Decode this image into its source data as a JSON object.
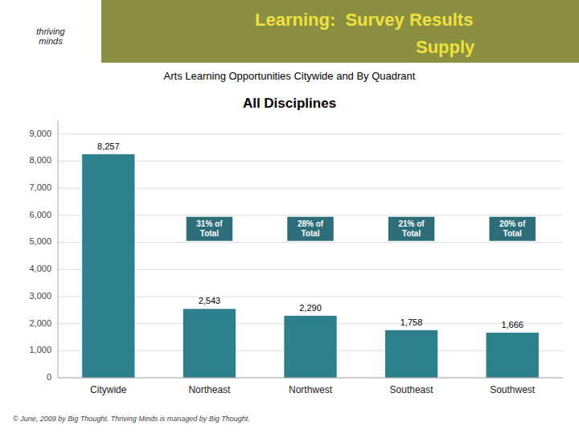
{
  "page": {
    "logo": "thriving\nminds",
    "header": [
      "Learning:  Survey Results",
      "Supply"
    ],
    "header_color": "#8a9040",
    "header_text_color": "#f0e040",
    "footer": "© June, 2009 by Big Thought. Thriving Minds is managed by Big Thought."
  },
  "chart_data": {
    "type": "bar",
    "title": "All Disciplines",
    "subtitle": "Arts Learning Opportunities Citywide and By Quadrant",
    "categories": [
      "Citywide",
      "Northeast",
      "Northwest",
      "Southeast",
      "Southwest"
    ],
    "values": [
      8257,
      2543,
      2290,
      1758,
      1666
    ],
    "value_labels": [
      "8,257",
      "2,543",
      "2,290",
      "1,758",
      "1,666"
    ],
    "data_labels": true,
    "color": "#2e7f8c",
    "ylim": [
      0,
      9500
    ],
    "yticks": [
      0,
      {
        "value": 1000,
        "label": "1,000"
      },
      {
        "value": 2000,
        "label": "2,000"
      },
      {
        "value": 3000,
        "label": "3,000"
      },
      {
        "value": 4000,
        "label": "4,000"
      },
      {
        "value": 5000,
        "label": "5,000"
      },
      {
        "value": 6000,
        "label": "6,000"
      },
      {
        "value": 7000,
        "label": "7,000"
      },
      {
        "value": 8000,
        "label": "8,000"
      },
      {
        "value": 9000,
        "label": "9,000"
      }
    ],
    "grid": true,
    "annotations": [
      {
        "text": "31% of\nTotal",
        "x": "Northeast",
        "y": 5500,
        "color": "#2e6e7a"
      },
      {
        "text": "28% of\nTotal",
        "x": "Northwest",
        "y": 5500,
        "color": "#2e6e7a"
      },
      {
        "text": "21% of\nTotal",
        "x": "Southeast",
        "y": 5500,
        "color": "#2e6e7a"
      },
      {
        "text": "20% of\nTotal",
        "x": "Southwest",
        "y": 5500,
        "color": "#2e6e7a"
      }
    ]
  }
}
